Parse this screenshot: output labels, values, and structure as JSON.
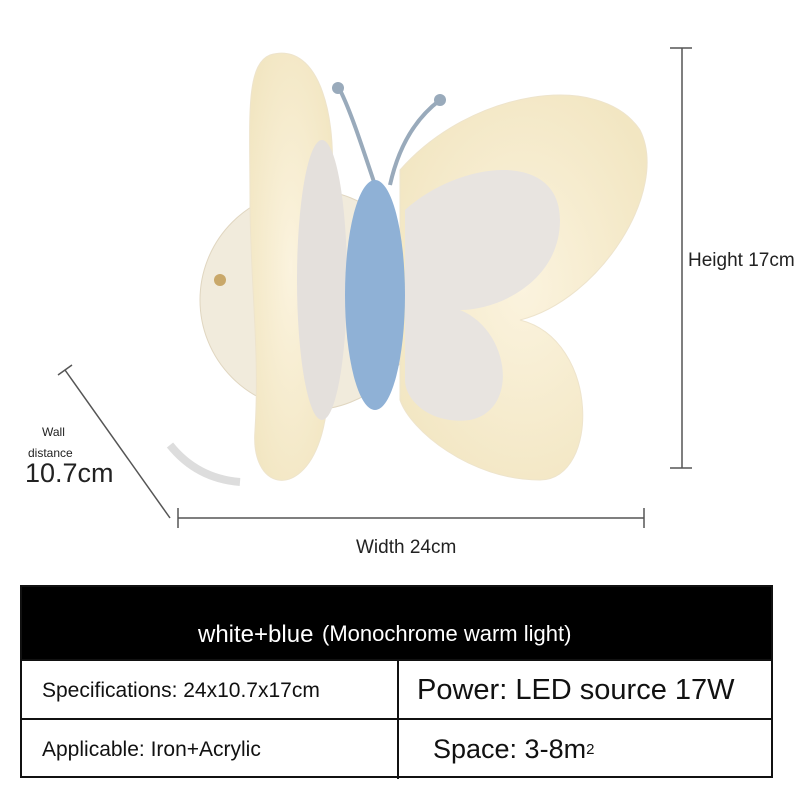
{
  "dimensions": {
    "height": "Height 17cm",
    "wall_label": [
      "Wall",
      "distance"
    ],
    "wall_value": "10.7cm",
    "width": "Width 24cm"
  },
  "table": {
    "header": {
      "color": "white+blue",
      "light": "(Monochrome warm light)"
    },
    "rows": [
      [
        "Specifications: 24x10.7x17cm",
        "Power: LED source 17W"
      ],
      [
        "Applicable: Iron+Acrylic",
        {
          "text": "Space: 3-8m",
          "superscript": "2"
        }
      ]
    ]
  }
}
